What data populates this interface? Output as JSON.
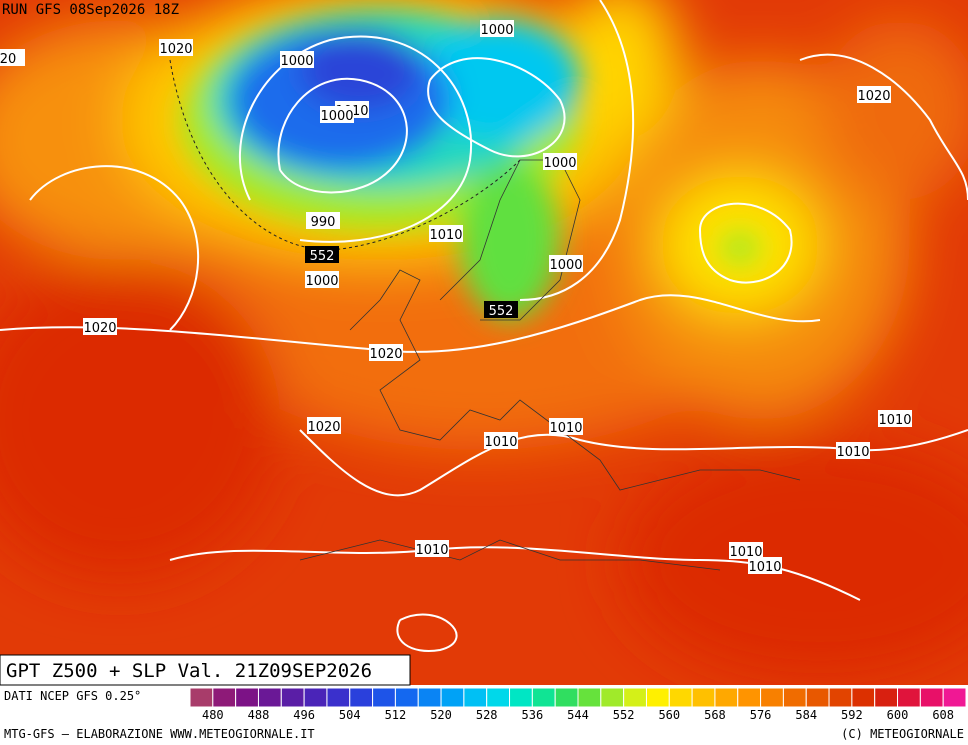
{
  "header": {
    "run": "RUN GFS 08Sep2026 18Z"
  },
  "map": {
    "title": "GPT Z500 + SLP Val. 21Z09SEP2026",
    "isobar_labels": [
      1000,
      1000,
      1010,
      1000,
      990,
      552,
      1000,
      1010,
      1000,
      1000,
      1020,
      1020,
      1020,
      1020,
      552,
      1010,
      1010,
      1010,
      1010,
      1010,
      1010,
      1010,
      1020,
      20
    ]
  },
  "legend": {
    "source": "DATI NCEP GFS 0.25°",
    "colors": [
      "#a83c6a",
      "#8e1a78",
      "#7c1286",
      "#6a1896",
      "#5a1ea6",
      "#4a24b8",
      "#3a30cc",
      "#2a40dc",
      "#1e54e8",
      "#1468f0",
      "#0a84f4",
      "#00a2f6",
      "#00c0f4",
      "#00d8ea",
      "#00e6c4",
      "#10e494",
      "#30de60",
      "#66e23c",
      "#a0ea2a",
      "#d4f018",
      "#fff000",
      "#ffd800",
      "#ffc000",
      "#ffa800",
      "#ff9400",
      "#f88000",
      "#f06c00",
      "#e85800",
      "#e24400",
      "#dc3000",
      "#d82010",
      "#e0143c",
      "#e81068",
      "#f01894"
    ],
    "ticks": [
      480,
      488,
      496,
      504,
      512,
      520,
      528,
      536,
      544,
      552,
      560,
      568,
      576,
      584,
      592,
      600,
      608
    ]
  },
  "footer": {
    "left": "MTG-GFS — ELABORAZIONE WWW.METEOGIORNALE.IT",
    "right": "(C) METEOGIORNALE"
  }
}
